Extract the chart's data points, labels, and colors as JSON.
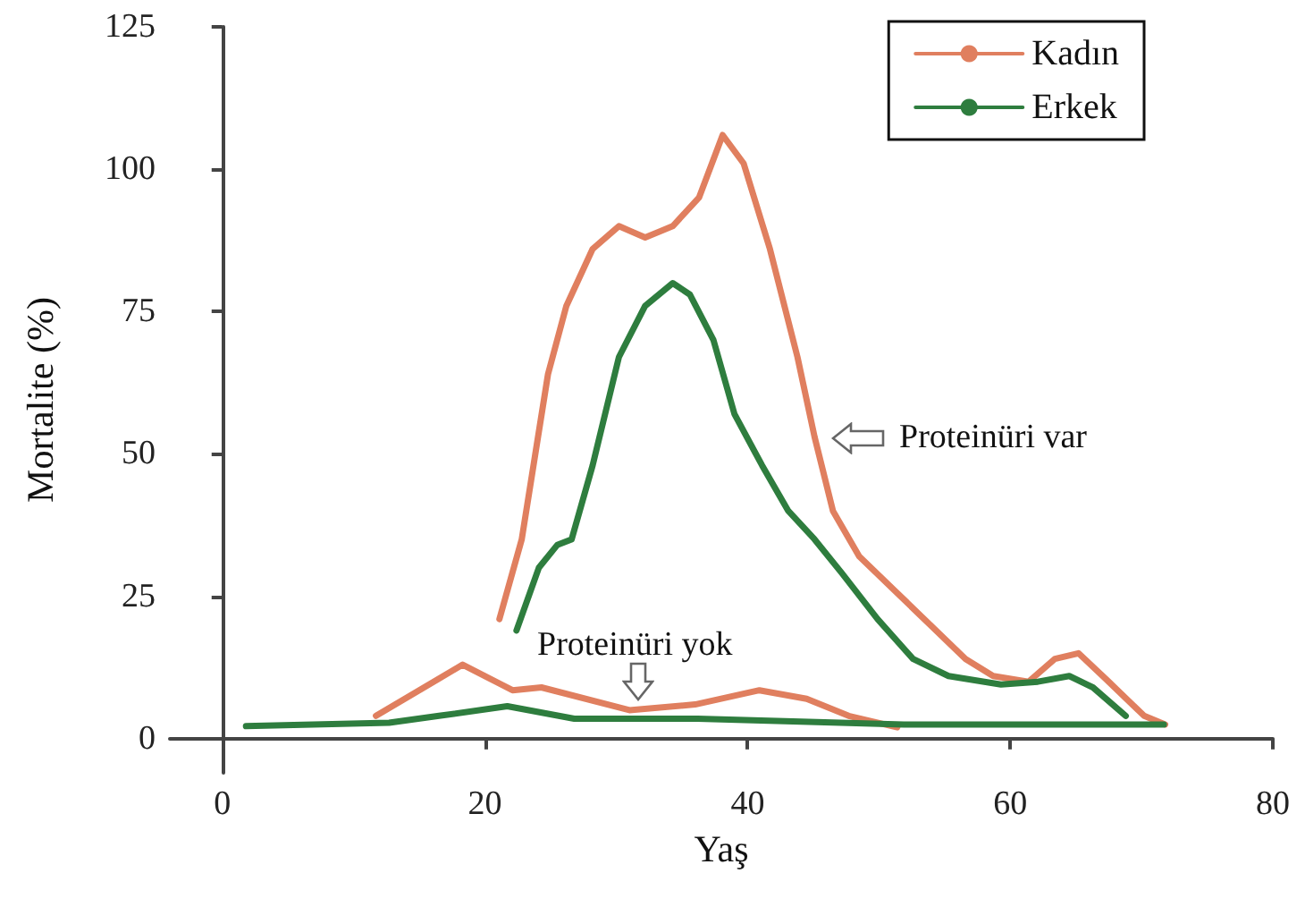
{
  "chart_data": {
    "type": "line",
    "xlabel": "Yaş",
    "ylabel": "Mortalite (%)",
    "xlim": [
      -4,
      80
    ],
    "xticks": [
      0,
      20,
      40,
      60,
      80
    ],
    "ylim": [
      -6,
      125
    ],
    "yticks": [
      0,
      25,
      50,
      75,
      100,
      125
    ],
    "grid": false,
    "legend": "top right",
    "line_style": "solid",
    "series": [
      {
        "name": "Kadın",
        "color": "#e07f5f",
        "x": [
          21.1,
          22.8,
          24.8,
          26.2,
          28.2,
          30.2,
          32.2,
          34.3,
          36.3,
          38.1,
          39.7,
          41.7,
          43.8,
          45.1,
          46.5,
          48.5,
          51.2,
          53.9,
          56.6,
          58.7,
          61.4,
          63.4,
          65.2,
          67.5,
          70.2,
          71.8
        ],
        "values": [
          21,
          35,
          64,
          76,
          86,
          90,
          88,
          90,
          95,
          106,
          101,
          86,
          67,
          53,
          40,
          32,
          26,
          20,
          14,
          11,
          10,
          14,
          15,
          10,
          4,
          2.5
        ]
      },
      {
        "name": "Erkek",
        "color": "#2e7d3e",
        "x": [
          22.4,
          24.1,
          25.5,
          26.6,
          28.2,
          30.2,
          32.2,
          34.3,
          35.6,
          37.4,
          39,
          41.1,
          43.1,
          45.1,
          47.2,
          49.9,
          52.6,
          55.3,
          59.3,
          62.1,
          64.5,
          66.3,
          68.8
        ],
        "values": [
          19,
          30,
          34,
          35,
          48,
          67,
          76,
          80,
          78,
          70,
          57,
          48,
          40,
          35,
          29,
          21,
          14,
          11,
          9.5,
          10,
          11,
          9,
          4
        ]
      },
      {
        "color": "#e07f5f",
        "x": [
          11.7,
          18.3,
          22.1,
          24.3,
          31,
          36,
          40.9,
          44.5,
          47.7,
          51.4
        ],
        "values": [
          4,
          13,
          8.5,
          9,
          5,
          6,
          8.5,
          7,
          4,
          2
        ]
      },
      {
        "color": "#2e7d3e",
        "x": [
          1.8,
          12.7,
          16.5,
          21.7,
          26.8,
          36.2,
          51.9,
          71.7
        ],
        "values": [
          2.2,
          2.8,
          4,
          5.7,
          3.5,
          3.5,
          2.5,
          2.5
        ]
      }
    ],
    "annotations": [
      "Proteinüri var",
      "Proteinüri yok"
    ]
  }
}
